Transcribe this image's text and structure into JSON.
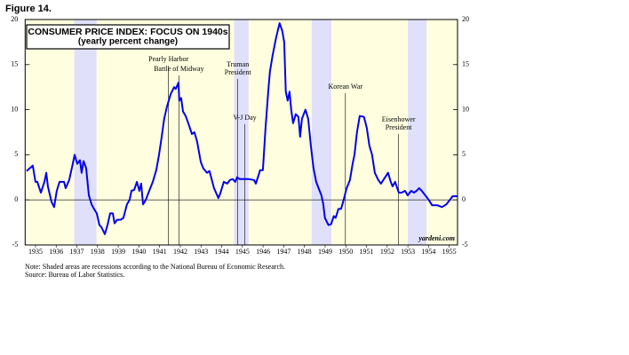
{
  "figure_label": "Figure 14.",
  "chart_data": {
    "type": "line",
    "title": "CONSUMER PRICE INDEX: FOCUS ON 1940s",
    "subtitle": "(yearly percent change)",
    "color": "#0000ee",
    "background": "#ffffe0",
    "shade_color": "#e0e0fa",
    "xlim": [
      1935,
      1955.9
    ],
    "ylim": [
      -5,
      20
    ],
    "yticks": [
      -5,
      0,
      5,
      10,
      15,
      20
    ],
    "xticks": [
      {
        "value": 1935.5,
        "label": "1935"
      },
      {
        "value": 1936.5,
        "label": "1936"
      },
      {
        "value": 1937.5,
        "label": "1937"
      },
      {
        "value": 1938.5,
        "label": "1938"
      },
      {
        "value": 1939.5,
        "label": "1939"
      },
      {
        "value": 1940.5,
        "label": "1940"
      },
      {
        "value": 1941.5,
        "label": "1941"
      },
      {
        "value": 1942.5,
        "label": "1942"
      },
      {
        "value": 1943.5,
        "label": "1943"
      },
      {
        "value": 1944.5,
        "label": "1944"
      },
      {
        "value": 1945.5,
        "label": "1945"
      },
      {
        "value": 1946.5,
        "label": "1946"
      },
      {
        "value": 1947.5,
        "label": "1947"
      },
      {
        "value": 1948.5,
        "label": "1948"
      },
      {
        "value": 1949.5,
        "label": "1949"
      },
      {
        "value": 1950.5,
        "label": "1950"
      },
      {
        "value": 1951.5,
        "label": "1951"
      },
      {
        "value": 1952.5,
        "label": "1952"
      },
      {
        "value": 1953.5,
        "label": "1953"
      },
      {
        "value": 1954.5,
        "label": "1954"
      },
      {
        "value": 1955.5,
        "label": "1955"
      }
    ],
    "recessions": [
      [
        1937.37,
        1938.45
      ],
      [
        1945.1,
        1945.8
      ],
      [
        1948.85,
        1949.8
      ],
      [
        1953.5,
        1954.4
      ]
    ],
    "annotations": [
      {
        "text": [
          "Pearly Harbor"
        ],
        "x": 1941.93
      },
      {
        "text": [
          "Battle of Midway"
        ],
        "x": 1942.43
      },
      {
        "text": [
          "Truman",
          "President"
        ],
        "x": 1945.28
      },
      {
        "text": [
          "V-J Day"
        ],
        "x": 1945.62
      },
      {
        "text": [
          "Korean War"
        ],
        "x": 1950.48
      },
      {
        "text": [
          "Eisenhower",
          "President"
        ],
        "x": 1953.05
      }
    ],
    "x": [
      1935.07,
      1935.37,
      1935.5,
      1935.59,
      1935.76,
      1935.93,
      1936.02,
      1936.1,
      1936.27,
      1936.4,
      1936.53,
      1936.66,
      1936.88,
      1936.96,
      1937.13,
      1937.3,
      1937.39,
      1937.52,
      1937.65,
      1937.73,
      1937.82,
      1937.95,
      1938.08,
      1938.21,
      1938.33,
      1938.46,
      1938.59,
      1938.68,
      1938.85,
      1938.98,
      1939.11,
      1939.24,
      1939.32,
      1939.45,
      1939.62,
      1939.75,
      1939.92,
      1940.05,
      1940.14,
      1940.27,
      1940.4,
      1940.52,
      1940.61,
      1940.7,
      1940.83,
      1941.0,
      1941.17,
      1941.34,
      1941.47,
      1941.6,
      1941.72,
      1941.85,
      1942.03,
      1942.2,
      1942.28,
      1942.41,
      1942.45,
      1942.54,
      1942.63,
      1942.76,
      1942.93,
      1943.06,
      1943.18,
      1943.31,
      1943.49,
      1943.61,
      1943.79,
      1943.91,
      1944.13,
      1944.34,
      1944.43,
      1944.6,
      1944.77,
      1944.9,
      1945.03,
      1945.16,
      1945.24,
      1945.37,
      1945.54,
      1945.8,
      1946.06,
      1946.15,
      1946.36,
      1946.49,
      1946.62,
      1946.75,
      1946.83,
      1946.96,
      1947.13,
      1947.3,
      1947.43,
      1947.52,
      1947.6,
      1947.69,
      1947.78,
      1947.86,
      1947.95,
      1948.08,
      1948.21,
      1948.29,
      1948.38,
      1948.55,
      1948.68,
      1948.81,
      1948.94,
      1949.07,
      1949.15,
      1949.32,
      1949.41,
      1949.49,
      1949.66,
      1949.79,
      1949.92,
      1950.01,
      1950.14,
      1950.27,
      1950.36,
      1950.53,
      1950.7,
      1950.83,
      1950.92,
      1951.04,
      1951.17,
      1951.38,
      1951.51,
      1951.64,
      1951.77,
      1951.9,
      1952.07,
      1952.2,
      1952.37,
      1952.54,
      1952.67,
      1952.76,
      1952.88,
      1953.06,
      1953.19,
      1953.36,
      1953.49,
      1953.66,
      1953.79,
      1953.92,
      1954.04,
      1954.17,
      1954.34,
      1954.51,
      1954.67,
      1954.93,
      1955.15,
      1955.36,
      1955.53,
      1955.66,
      1955.89
    ],
    "values": [
      3.2,
      3.8,
      2,
      2,
      0.8,
      2,
      3,
      1.5,
      -0.2,
      -0.8,
      1,
      2,
      2,
      1.3,
      2.2,
      4,
      5,
      4,
      4.4,
      3,
      4.3,
      3.5,
      0.5,
      -0.5,
      -1,
      -1.5,
      -2.8,
      -3,
      -3.8,
      -2.8,
      -1.5,
      -1.5,
      -2.6,
      -2.2,
      -2.2,
      -2,
      -0.5,
      0,
      1,
      1.1,
      2,
      1,
      1.8,
      -0.5,
      0,
      1,
      2,
      3.3,
      5,
      7,
      9,
      10.3,
      11.7,
      12.5,
      12.3,
      13,
      11,
      11.3,
      9.8,
      9.3,
      8.2,
      7.3,
      7.5,
      6.5,
      4.2,
      3.5,
      3,
      3.2,
      1.3,
      0.2,
      0.7,
      2,
      1.8,
      2.2,
      2.3,
      2,
      2.5,
      2.3,
      2.3,
      2.3,
      2.2,
      1.8,
      3.3,
      3.3,
      8,
      12,
      14.2,
      16,
      18,
      19.6,
      18.7,
      17.5,
      12,
      11,
      12,
      10,
      8.5,
      9.5,
      9.2,
      7,
      9,
      10,
      9,
      6,
      3.5,
      2,
      1.5,
      0.5,
      -0.5,
      -2,
      -2.8,
      -2.7,
      -1.8,
      -2,
      -1,
      -1,
      -0.3,
      1.2,
      2.2,
      4,
      5,
      7.5,
      9.3,
      9.2,
      8,
      6,
      5,
      3,
      2.2,
      1.8,
      2.4,
      3,
      2,
      1.5,
      2,
      0.8,
      0.8,
      1,
      0.5,
      1,
      0.8,
      1,
      1.3,
      1,
      0.5,
      0,
      -0.6,
      -0.6,
      -0.8,
      -0.5,
      0,
      0.4,
      0.4
    ],
    "watermark": "yardeni.com",
    "notes": [
      "Note: Shaded areas are recessions according to the National Bureau of Economic Research.",
      "Source: Bureau of Labor Statistics."
    ]
  }
}
